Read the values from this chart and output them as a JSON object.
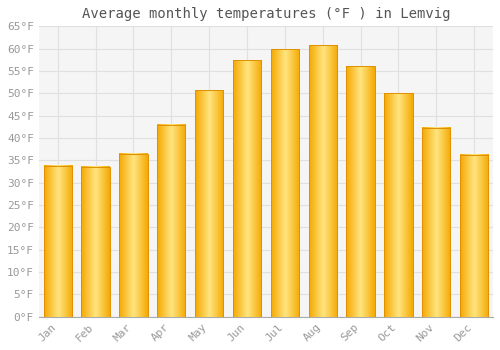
{
  "title": "Average monthly temperatures (°F ) in Lemvig",
  "months": [
    "Jan",
    "Feb",
    "Mar",
    "Apr",
    "May",
    "Jun",
    "Jul",
    "Aug",
    "Sep",
    "Oct",
    "Nov",
    "Dec"
  ],
  "values": [
    33.8,
    33.6,
    36.5,
    43.0,
    50.7,
    57.4,
    59.9,
    60.8,
    56.1,
    50.0,
    42.3,
    36.3
  ],
  "bar_color_center": "#FFE066",
  "bar_color_edge": "#F5A800",
  "ylim": [
    0,
    65
  ],
  "yticks": [
    0,
    5,
    10,
    15,
    20,
    25,
    30,
    35,
    40,
    45,
    50,
    55,
    60,
    65
  ],
  "background_color": "#FFFFFF",
  "plot_bg_color": "#F5F5F5",
  "grid_color": "#E0E0E0",
  "title_fontsize": 10,
  "tick_fontsize": 8,
  "tick_font_color": "#999999",
  "title_font_color": "#555555",
  "bar_width": 0.75
}
